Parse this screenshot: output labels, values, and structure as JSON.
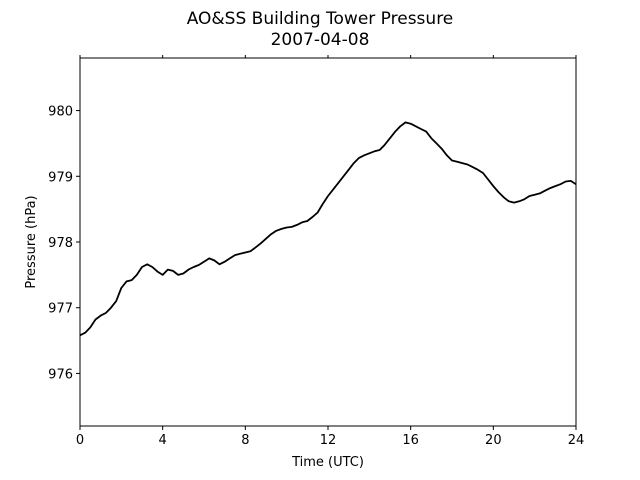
{
  "chart_data": {
    "type": "line",
    "title": "AO&SS Building Tower Pressure",
    "subtitle": "2007-04-08",
    "xlabel": "Time (UTC)",
    "ylabel": "Pressure (hPa)",
    "xlim": [
      0,
      24
    ],
    "ylim": [
      975.2,
      980.8
    ],
    "xticks": [
      0,
      4,
      8,
      12,
      16,
      20,
      24
    ],
    "yticks": [
      976,
      977,
      978,
      979,
      980
    ],
    "grid": false,
    "line_color": "#000000",
    "series": [
      {
        "x": [
          0,
          0.25,
          0.5,
          0.75,
          1.0,
          1.25,
          1.5,
          1.75,
          2.0,
          2.25,
          2.5,
          2.75,
          3.0,
          3.25,
          3.5,
          3.75,
          4.0,
          4.25,
          4.5,
          4.75,
          5.0,
          5.25,
          5.5,
          5.75,
          6.0,
          6.25,
          6.5,
          6.75,
          7.0,
          7.25,
          7.5,
          7.75,
          8.0,
          8.25,
          8.5,
          8.75,
          9.0,
          9.25,
          9.5,
          9.75,
          10.0,
          10.25,
          10.5,
          10.75,
          11.0,
          11.25,
          11.5,
          11.75,
          12.0,
          12.25,
          12.5,
          12.75,
          13.0,
          13.25,
          13.5,
          13.75,
          14.0,
          14.25,
          14.5,
          14.75,
          15.0,
          15.25,
          15.5,
          15.75,
          16.0,
          16.25,
          16.5,
          16.75,
          17.0,
          17.25,
          17.5,
          17.75,
          18.0,
          18.25,
          18.5,
          18.75,
          19.0,
          19.25,
          19.5,
          19.75,
          20.0,
          20.25,
          20.5,
          20.75,
          21.0,
          21.25,
          21.5,
          21.75,
          22.0,
          22.25,
          22.5,
          22.75,
          23.0,
          23.25,
          23.5,
          23.75,
          24.0
        ],
        "values": [
          976.58,
          976.62,
          976.7,
          976.82,
          976.88,
          976.92,
          977.0,
          977.1,
          977.3,
          977.4,
          977.42,
          977.5,
          977.62,
          977.66,
          977.62,
          977.55,
          977.5,
          977.58,
          977.56,
          977.5,
          977.52,
          977.58,
          977.62,
          977.65,
          977.7,
          977.75,
          977.72,
          977.66,
          977.7,
          977.75,
          977.8,
          977.82,
          977.84,
          977.86,
          977.92,
          977.98,
          978.05,
          978.12,
          978.17,
          978.2,
          978.22,
          978.23,
          978.26,
          978.3,
          978.32,
          978.38,
          978.45,
          978.58,
          978.7,
          978.8,
          978.9,
          979.0,
          979.1,
          979.2,
          979.28,
          979.32,
          979.35,
          979.38,
          979.4,
          979.48,
          979.58,
          979.68,
          979.76,
          979.82,
          979.8,
          979.76,
          979.72,
          979.68,
          979.58,
          979.5,
          979.42,
          979.32,
          979.24,
          979.22,
          979.2,
          979.18,
          979.14,
          979.1,
          979.05,
          978.95,
          978.85,
          978.76,
          978.68,
          978.62,
          978.6,
          978.62,
          978.65,
          978.7,
          978.72,
          978.74,
          978.78,
          978.82,
          978.85,
          978.88,
          978.92,
          978.93,
          978.88
        ]
      }
    ]
  }
}
